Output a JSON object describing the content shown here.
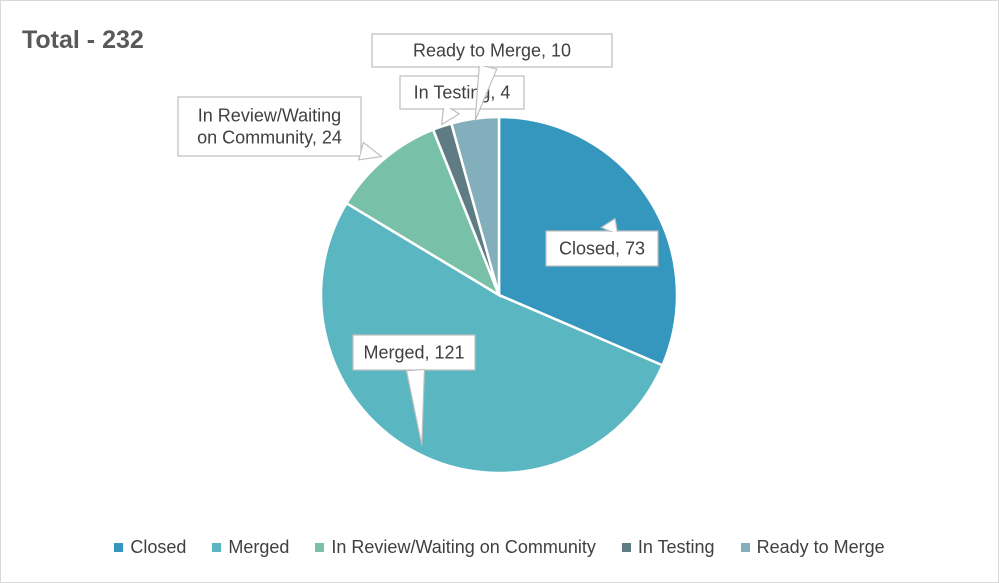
{
  "chart_data": {
    "type": "pie",
    "title": "Total - 232",
    "categories": [
      "Closed",
      "Merged",
      "In Review/Waiting on Community",
      "In Testing",
      "Ready to Merge"
    ],
    "values": [
      73,
      121,
      24,
      4,
      10
    ],
    "colors": [
      "#3597bd",
      "#5ab7c1",
      "#78c0a8",
      "#5f7c85",
      "#83aebb"
    ],
    "data_labels": [
      [
        "Closed, 73"
      ],
      [
        "Merged, 121"
      ],
      [
        "In Review/Waiting",
        "on Community, 24"
      ],
      [
        "In Testing, 4"
      ],
      [
        "Ready to Merge, 10"
      ]
    ],
    "legend_position": "bottom"
  }
}
